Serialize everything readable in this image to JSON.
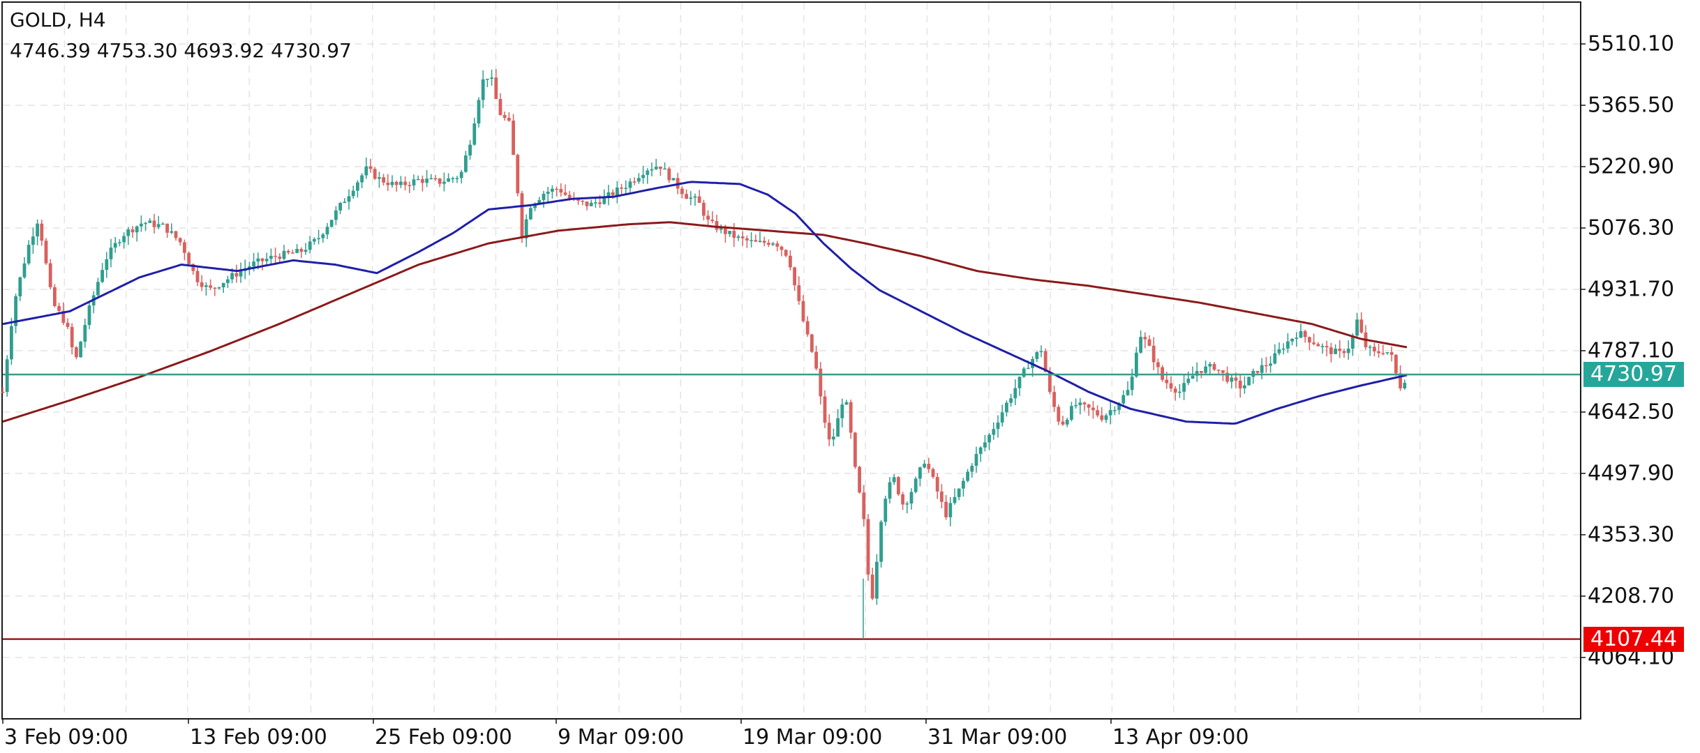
{
  "header": {
    "symbol_title": "GOLD, H4",
    "ohlc_text": "4746.39 4753.30 4693.92 4730.97"
  },
  "y_axis": {
    "ticks": [
      "5510.10",
      "5365.50",
      "5220.90",
      "5076.30",
      "4931.70",
      "4787.10",
      "4642.50",
      "4497.90",
      "4353.30",
      "4208.70",
      "4064.10"
    ]
  },
  "x_axis": {
    "ticks": [
      "3 Feb 09:00",
      "13 Feb 09:00",
      "25 Feb 09:00",
      "9 Mar 09:00",
      "19 Mar 09:00",
      "31 Mar 09:00",
      "13 Apr 09:00"
    ]
  },
  "price_tags": {
    "bid": "4730.97",
    "low": "4107.44"
  },
  "colors": {
    "bull": "#2f9e8f",
    "bear": "#d9605e",
    "ma_fast": "#1f1fa8",
    "ma_slow": "#8b1a1a",
    "bid_line": "#3f9a8a",
    "bid_tag": "#26a69a",
    "low_line": "#9b1c1c",
    "low_tag": "#ee0000",
    "grid": "#e4e4e4"
  },
  "chart_data": {
    "type": "candlestick",
    "title": "GOLD, H4",
    "ohlc_last": {
      "open": 4746.39,
      "high": 4753.3,
      "low": 4693.92,
      "close": 4730.97
    },
    "ylim": [
      3990,
      5600
    ],
    "y_ticks": [
      5510.1,
      5365.5,
      5220.9,
      5076.3,
      4931.7,
      4787.1,
      4642.5,
      4497.9,
      4353.3,
      4208.7,
      4064.1
    ],
    "x_tick_labels": [
      "3 Feb 09:00",
      "13 Feb 09:00",
      "25 Feb 09:00",
      "9 Mar 09:00",
      "19 Mar 09:00",
      "31 Mar 09:00",
      "13 Apr 09:00"
    ],
    "horizontal_lines": [
      {
        "name": "bid",
        "price": 4730.97
      },
      {
        "name": "period_low",
        "price": 4107.44
      }
    ],
    "grid": true,
    "close_path": [
      [
        4,
        4690
      ],
      [
        20,
        4900
      ],
      [
        40,
        5030
      ],
      [
        55,
        5100
      ],
      [
        75,
        4900
      ],
      [
        95,
        4850
      ],
      [
        108,
        4760
      ],
      [
        125,
        4870
      ],
      [
        150,
        5000
      ],
      [
        175,
        5060
      ],
      [
        205,
        5090
      ],
      [
        235,
        5080
      ],
      [
        260,
        5040
      ],
      [
        280,
        4960
      ],
      [
        300,
        4930
      ],
      [
        330,
        4960
      ],
      [
        360,
        4990
      ],
      [
        395,
        5010
      ],
      [
        430,
        5020
      ],
      [
        455,
        5050
      ],
      [
        480,
        5110
      ],
      [
        505,
        5170
      ],
      [
        525,
        5215
      ],
      [
        545,
        5190
      ],
      [
        570,
        5175
      ],
      [
        600,
        5190
      ],
      [
        630,
        5185
      ],
      [
        660,
        5200
      ],
      [
        675,
        5290
      ],
      [
        690,
        5420
      ],
      [
        702,
        5440
      ],
      [
        715,
        5350
      ],
      [
        730,
        5320
      ],
      [
        742,
        5160
      ],
      [
        748,
        5060
      ],
      [
        760,
        5130
      ],
      [
        780,
        5160
      ],
      [
        800,
        5170
      ],
      [
        820,
        5140
      ],
      [
        845,
        5130
      ],
      [
        870,
        5150
      ],
      [
        900,
        5180
      ],
      [
        925,
        5215
      ],
      [
        945,
        5225
      ],
      [
        965,
        5185
      ],
      [
        985,
        5150
      ],
      [
        1000,
        5140
      ],
      [
        1015,
        5090
      ],
      [
        1035,
        5070
      ],
      [
        1060,
        5050
      ],
      [
        1085,
        5040
      ],
      [
        1110,
        5045
      ],
      [
        1130,
        5010
      ],
      [
        1140,
        4930
      ],
      [
        1155,
        4830
      ],
      [
        1168,
        4760
      ],
      [
        1178,
        4650
      ],
      [
        1190,
        4560
      ],
      [
        1200,
        4620
      ],
      [
        1210,
        4690
      ],
      [
        1220,
        4580
      ],
      [
        1228,
        4470
      ],
      [
        1236,
        4420
      ],
      [
        1242,
        4300
      ],
      [
        1248,
        4180
      ],
      [
        1256,
        4290
      ],
      [
        1265,
        4430
      ],
      [
        1280,
        4490
      ],
      [
        1295,
        4420
      ],
      [
        1310,
        4470
      ],
      [
        1325,
        4530
      ],
      [
        1340,
        4470
      ],
      [
        1355,
        4400
      ],
      [
        1375,
        4460
      ],
      [
        1395,
        4530
      ],
      [
        1415,
        4580
      ],
      [
        1435,
        4640
      ],
      [
        1455,
        4700
      ],
      [
        1475,
        4760
      ],
      [
        1492,
        4790
      ],
      [
        1505,
        4680
      ],
      [
        1520,
        4610
      ],
      [
        1540,
        4660
      ],
      [
        1560,
        4650
      ],
      [
        1580,
        4630
      ],
      [
        1600,
        4660
      ],
      [
        1620,
        4700
      ],
      [
        1632,
        4830
      ],
      [
        1645,
        4800
      ],
      [
        1665,
        4720
      ],
      [
        1690,
        4690
      ],
      [
        1715,
        4740
      ],
      [
        1740,
        4750
      ],
      [
        1760,
        4720
      ],
      [
        1780,
        4700
      ],
      [
        1800,
        4740
      ],
      [
        1820,
        4760
      ],
      [
        1840,
        4800
      ],
      [
        1860,
        4830
      ],
      [
        1880,
        4810
      ],
      [
        1900,
        4790
      ],
      [
        1920,
        4780
      ],
      [
        1935,
        4800
      ],
      [
        1945,
        4860
      ],
      [
        1955,
        4800
      ],
      [
        1970,
        4780
      ],
      [
        1985,
        4790
      ],
      [
        1995,
        4770
      ],
      [
        2005,
        4700
      ],
      [
        2017,
        4730.97
      ]
    ],
    "ma_fast_path": [
      [
        4,
        4850
      ],
      [
        100,
        4880
      ],
      [
        200,
        4960
      ],
      [
        260,
        4990
      ],
      [
        340,
        4975
      ],
      [
        420,
        5000
      ],
      [
        480,
        4990
      ],
      [
        540,
        4970
      ],
      [
        600,
        5020
      ],
      [
        650,
        5065
      ],
      [
        700,
        5120
      ],
      [
        760,
        5130
      ],
      [
        820,
        5145
      ],
      [
        880,
        5150
      ],
      [
        940,
        5170
      ],
      [
        990,
        5185
      ],
      [
        1060,
        5180
      ],
      [
        1100,
        5155
      ],
      [
        1140,
        5110
      ],
      [
        1180,
        5040
      ],
      [
        1220,
        4980
      ],
      [
        1260,
        4930
      ],
      [
        1320,
        4880
      ],
      [
        1380,
        4830
      ],
      [
        1440,
        4785
      ],
      [
        1500,
        4740
      ],
      [
        1560,
        4690
      ],
      [
        1620,
        4650
      ],
      [
        1700,
        4620
      ],
      [
        1770,
        4615
      ],
      [
        1830,
        4650
      ],
      [
        1890,
        4680
      ],
      [
        1950,
        4705
      ],
      [
        2017,
        4730
      ]
    ],
    "ma_slow_path": [
      [
        4,
        4620
      ],
      [
        100,
        4670
      ],
      [
        200,
        4725
      ],
      [
        300,
        4785
      ],
      [
        400,
        4850
      ],
      [
        500,
        4920
      ],
      [
        600,
        4990
      ],
      [
        700,
        5040
      ],
      [
        800,
        5070
      ],
      [
        900,
        5085
      ],
      [
        960,
        5090
      ],
      [
        1020,
        5080
      ],
      [
        1100,
        5070
      ],
      [
        1180,
        5060
      ],
      [
        1240,
        5040
      ],
      [
        1320,
        5010
      ],
      [
        1400,
        4975
      ],
      [
        1480,
        4955
      ],
      [
        1560,
        4940
      ],
      [
        1640,
        4920
      ],
      [
        1720,
        4900
      ],
      [
        1800,
        4875
      ],
      [
        1880,
        4850
      ],
      [
        1950,
        4815
      ],
      [
        2017,
        4795
      ]
    ],
    "xlabel": "",
    "ylabel": ""
  }
}
